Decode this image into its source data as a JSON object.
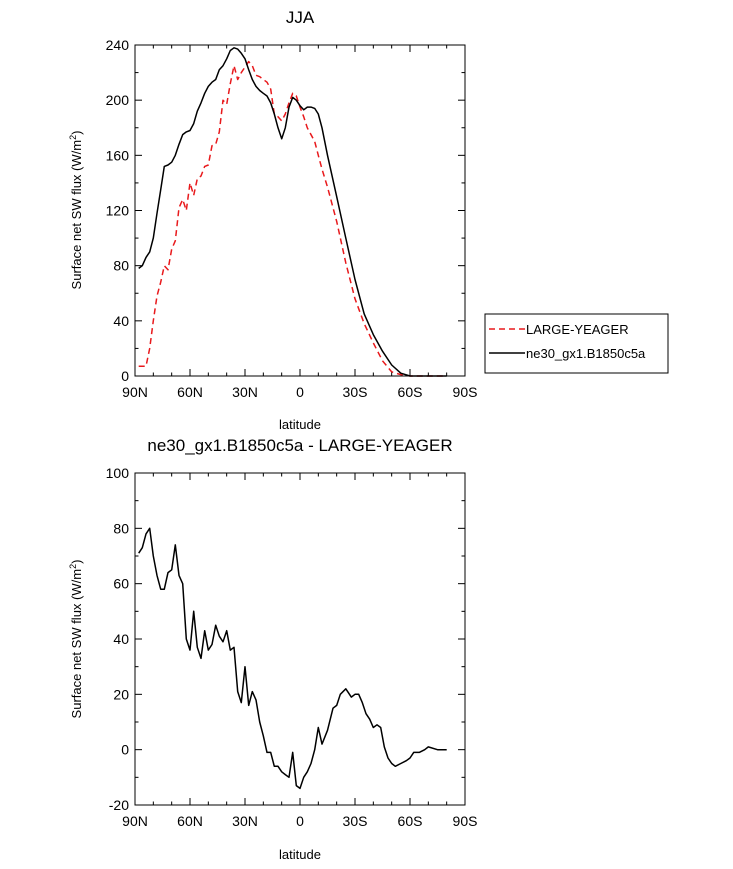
{
  "chart_data": [
    {
      "type": "line",
      "title": "JJA",
      "xlabel": "latitude",
      "ylabel": "Surface net SW flux (W/m",
      "ylabel_sup": "2",
      "ylabel_close": ")",
      "xlim": [
        -90,
        90
      ],
      "ylim": [
        0,
        240
      ],
      "xticks": [
        -90,
        -60,
        -30,
        0,
        30,
        60,
        90
      ],
      "xtick_labels": [
        "90N",
        "60N",
        "30N",
        "0",
        "30S",
        "60S",
        "90S"
      ],
      "yticks": [
        0,
        40,
        80,
        120,
        160,
        200,
        240
      ],
      "ytick_labels": [
        "0",
        "40",
        "80",
        "120",
        "160",
        "200",
        "240"
      ],
      "legend_position": "right",
      "series": [
        {
          "name": "LARGE-YEAGER",
          "color": "#e8191c",
          "dash": "dashed",
          "x": [
            -88,
            -84,
            -82,
            -80,
            -78,
            -76,
            -74,
            -72,
            -70,
            -68,
            -66,
            -64,
            -62,
            -60,
            -58,
            -56,
            -54,
            -52,
            -50,
            -48,
            -46,
            -44,
            -42,
            -40,
            -38,
            -36,
            -34,
            -32,
            -30,
            -28,
            -26,
            -24,
            -22,
            -20,
            -18,
            -16,
            -14,
            -12,
            -10,
            -8,
            -6,
            -4,
            -2,
            0,
            2,
            4,
            6,
            8,
            10,
            12,
            15,
            20,
            25,
            30,
            35,
            40,
            45,
            50,
            55,
            60,
            65,
            70,
            75,
            80
          ],
          "y": [
            7,
            7,
            20,
            40,
            58,
            68,
            80,
            77,
            92,
            98,
            122,
            128,
            120,
            140,
            131,
            143,
            145,
            152,
            153,
            167,
            168,
            177,
            200,
            197,
            212,
            225,
            215,
            220,
            224,
            228,
            225,
            218,
            217,
            215,
            213,
            208,
            190,
            188,
            185,
            190,
            198,
            205,
            203,
            195,
            188,
            180,
            175,
            170,
            160,
            150,
            137,
            112,
            82,
            56,
            38,
            24,
            11,
            3,
            1,
            0,
            0,
            0,
            0,
            0
          ]
        },
        {
          "name": "ne30_gx1.B1850c5a",
          "color": "#000000",
          "dash": "solid",
          "x": [
            -88,
            -86,
            -84,
            -82,
            -80,
            -78,
            -76,
            -74,
            -72,
            -70,
            -68,
            -66,
            -64,
            -62,
            -60,
            -58,
            -56,
            -54,
            -52,
            -50,
            -48,
            -46,
            -44,
            -42,
            -40,
            -38,
            -36,
            -34,
            -32,
            -30,
            -28,
            -26,
            -24,
            -22,
            -20,
            -18,
            -16,
            -14,
            -12,
            -10,
            -8,
            -6,
            -4,
            -2,
            0,
            2,
            4,
            6,
            8,
            10,
            12,
            15,
            20,
            25,
            30,
            35,
            40,
            45,
            50,
            55,
            60,
            65,
            70,
            75,
            80
          ],
          "y": [
            78,
            80,
            86,
            90,
            100,
            118,
            135,
            152,
            153,
            155,
            160,
            168,
            175,
            177,
            178,
            183,
            192,
            198,
            205,
            210,
            213,
            215,
            222,
            225,
            230,
            236,
            238,
            237,
            234,
            230,
            222,
            215,
            210,
            207,
            205,
            203,
            198,
            190,
            180,
            172,
            180,
            195,
            202,
            200,
            196,
            193,
            195,
            195,
            194,
            190,
            180,
            160,
            130,
            100,
            70,
            45,
            30,
            18,
            8,
            2,
            0,
            0,
            0,
            0,
            0
          ]
        }
      ]
    },
    {
      "type": "line",
      "title": "ne30_gx1.B1850c5a - LARGE-YEAGER",
      "xlabel": "latitude",
      "ylabel": "Surface net SW flux (W/m",
      "ylabel_sup": "2",
      "ylabel_close": ")",
      "xlim": [
        -90,
        90
      ],
      "ylim": [
        -20,
        100
      ],
      "xticks": [
        -90,
        -60,
        -30,
        0,
        30,
        60,
        90
      ],
      "xtick_labels": [
        "90N",
        "60N",
        "30N",
        "0",
        "30S",
        "60S",
        "90S"
      ],
      "yticks": [
        -20,
        0,
        20,
        40,
        60,
        80,
        100
      ],
      "ytick_labels": [
        "-20",
        "0",
        "20",
        "40",
        "60",
        "80",
        "100"
      ],
      "series": [
        {
          "name": "ne30_gx1.B1850c5a - LARGE-YEAGER",
          "color": "#000000",
          "dash": "solid",
          "x": [
            -88,
            -86,
            -84,
            -82,
            -80,
            -78,
            -76,
            -74,
            -72,
            -70,
            -68,
            -66,
            -64,
            -62,
            -60,
            -58,
            -56,
            -54,
            -52,
            -50,
            -48,
            -46,
            -44,
            -42,
            -40,
            -38,
            -36,
            -34,
            -32,
            -30,
            -28,
            -26,
            -24,
            -22,
            -20,
            -18,
            -16,
            -14,
            -12,
            -10,
            -8,
            -6,
            -4,
            -2,
            0,
            2,
            4,
            6,
            8,
            10,
            12,
            15,
            18,
            20,
            22,
            25,
            28,
            30,
            32,
            34,
            36,
            38,
            40,
            42,
            44,
            46,
            48,
            50,
            52,
            55,
            58,
            60,
            62,
            65,
            68,
            70,
            75,
            80
          ],
          "y": [
            71,
            73,
            78,
            80,
            70,
            63,
            58,
            58,
            64,
            65,
            74,
            63,
            60,
            40,
            36,
            50,
            37,
            33,
            43,
            36,
            38,
            45,
            41,
            39,
            43,
            36,
            37,
            21,
            17,
            30,
            16,
            21,
            18,
            10,
            5,
            -1,
            -1,
            -6,
            -6,
            -8,
            -9,
            -10,
            -1,
            -13,
            -14,
            -10,
            -8,
            -5,
            0,
            8,
            2,
            7,
            15,
            16,
            20,
            22,
            19,
            20,
            20,
            17,
            13,
            11,
            8,
            9,
            8,
            1,
            -3,
            -5,
            -6,
            -5,
            -4,
            -3,
            -1,
            -1,
            0,
            1,
            0,
            0
          ]
        }
      ]
    }
  ]
}
